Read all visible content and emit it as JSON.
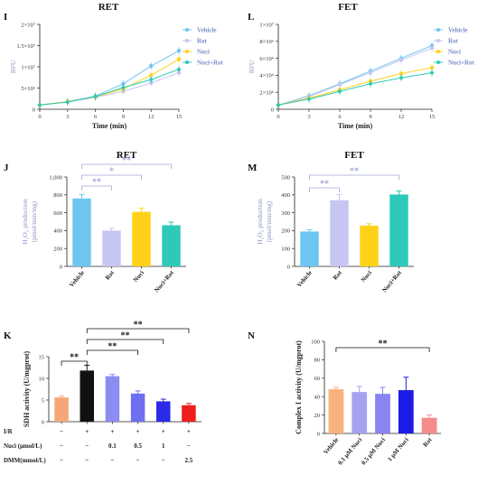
{
  "colors": {
    "vehicle": "#6ec6f0",
    "rot": "#c7c6f2",
    "nuci": "#ffd21a",
    "nuci_rot": "#2ec9b8",
    "sig_blue": "#a3a9d8",
    "sig_black": "#111111",
    "k_colors": [
      "#f7a777",
      "#111111",
      "#8d8cf2",
      "#6e6ef0",
      "#2a2ae8",
      "#ef1e1e"
    ],
    "n_colors": [
      "#f9b27d",
      "#a5a3f0",
      "#8884f0",
      "#1c1ce4",
      "#f58b8b"
    ]
  },
  "chart_data": [
    {
      "id": "I",
      "letter": "I",
      "type": "line",
      "title": "RET",
      "xlabel": "Time (min)",
      "ylabel": "RFU",
      "xticks": [
        "0",
        "3",
        "6",
        "9",
        "12",
        "15"
      ],
      "yticks": [
        "0",
        "5×10⁶",
        "1×10⁷",
        "1.5×10⁷",
        "2×10⁷"
      ],
      "xlim": [
        0,
        15
      ],
      "ylim": [
        0,
        20000000
      ],
      "x": [
        0,
        3,
        6,
        9,
        12,
        15
      ],
      "series": [
        {
          "name": "Vehicle",
          "values": [
            1000000,
            1800000,
            3100000,
            6000000,
            10200000,
            13800000
          ]
        },
        {
          "name": "Rot",
          "values": [
            1000000,
            1700000,
            2800000,
            4200000,
            6200000,
            8600000
          ]
        },
        {
          "name": "Nuci",
          "values": [
            1000000,
            1800000,
            2900000,
            4800000,
            8000000,
            11800000
          ]
        },
        {
          "name": "Nuci+Rot",
          "values": [
            1000000,
            1700000,
            3000000,
            5100000,
            7000000,
            9400000
          ]
        }
      ],
      "legend": "right"
    },
    {
      "id": "L",
      "letter": "L",
      "type": "line",
      "title": "FET",
      "xlabel": "Time (min)",
      "ylabel": "RFU",
      "xticks": [
        "0",
        "3",
        "6",
        "9",
        "12",
        "15"
      ],
      "yticks": [
        "0",
        "2×10⁶",
        "4×10⁶",
        "6×10⁶",
        "8×10⁶",
        "1×10⁷"
      ],
      "xlim": [
        0,
        15
      ],
      "ylim": [
        0,
        10000000
      ],
      "x": [
        0,
        3,
        6,
        9,
        12,
        15
      ],
      "series": [
        {
          "name": "Vehicle",
          "values": [
            500000,
            1600000,
            3000000,
            4500000,
            6000000,
            7500000
          ]
        },
        {
          "name": "Rot",
          "values": [
            500000,
            1500000,
            2900000,
            4300000,
            5800000,
            7200000
          ]
        },
        {
          "name": "Nuci",
          "values": [
            500000,
            1300000,
            2300000,
            3300000,
            4200000,
            4900000
          ]
        },
        {
          "name": "Nuci+Rot",
          "values": [
            500000,
            1200000,
            2100000,
            3000000,
            3700000,
            4300000
          ]
        }
      ],
      "legend": "right"
    },
    {
      "id": "J",
      "letter": "J",
      "type": "bar",
      "title": "RET",
      "ylabel_line1": "H₂O₂ production",
      "ylabel_line2": "(pmol/min/mg)",
      "yticks": [
        "0",
        "200",
        "400",
        "600",
        "800",
        "1,000"
      ],
      "ylim": [
        0,
        1000
      ],
      "categories": [
        "Vehicle",
        "Rot",
        "Nuci",
        "Nuci+Rot"
      ],
      "values": [
        760,
        400,
        610,
        460
      ],
      "errors": [
        45,
        25,
        40,
        35
      ],
      "significance": [
        {
          "from": 0,
          "to": 1,
          "label": "**",
          "level": 0
        },
        {
          "from": 0,
          "to": 2,
          "label": "*",
          "level": 1
        },
        {
          "from": 0,
          "to": 3,
          "label": "**",
          "level": 2
        }
      ]
    },
    {
      "id": "M",
      "letter": "M",
      "type": "bar",
      "title": "FET",
      "ylabel_line1": "H₂O₂ production",
      "ylabel_line2": "(pmol/min/mg)",
      "yticks": [
        "0",
        "100",
        "200",
        "300",
        "400",
        "500"
      ],
      "ylim": [
        0,
        500
      ],
      "categories": [
        "Vehicle",
        "Rot",
        "Nuci",
        "Nuci+Rot"
      ],
      "values": [
        195,
        370,
        228,
        402
      ],
      "errors": [
        10,
        32,
        10,
        20
      ],
      "significance": [
        {
          "from": 0,
          "to": 1,
          "label": "**",
          "level": 0
        },
        {
          "from": 0,
          "to": 3,
          "label": "**",
          "level": 1
        }
      ]
    },
    {
      "id": "K",
      "letter": "K",
      "type": "bar",
      "title": "",
      "ylabel": "SDH activity (U/mgprot)",
      "yticks": [
        "0",
        "5",
        "10",
        "15"
      ],
      "ylim": [
        0,
        15
      ],
      "categories": [
        "",
        "",
        "",
        "",
        "",
        ""
      ],
      "values": [
        5.6,
        11.8,
        10.5,
        6.5,
        4.7,
        3.8
      ],
      "errors": [
        0.3,
        1.2,
        0.4,
        0.6,
        0.5,
        0.4
      ],
      "row_labels": [
        "I/R",
        "Nuci (μmol/L)",
        "DMM(mmol/L)"
      ],
      "rows": [
        [
          "−",
          "+",
          "+",
          "+",
          "+",
          "+"
        ],
        [
          "−",
          "−",
          "0.1",
          "0.5",
          "1",
          "−"
        ],
        [
          "−",
          "−",
          "−",
          "−",
          "−",
          "2.5"
        ]
      ],
      "significance": [
        {
          "from": 0,
          "to": 1,
          "label": "**",
          "level": 0
        },
        {
          "from": 1,
          "to": 3,
          "label": "**",
          "level": 1
        },
        {
          "from": 1,
          "to": 4,
          "label": "**",
          "level": 2
        },
        {
          "from": 1,
          "to": 5,
          "label": "**",
          "level": 3
        }
      ]
    },
    {
      "id": "N",
      "letter": "N",
      "type": "bar",
      "title": "",
      "ylabel": "Complex I activity (U/mgprot)",
      "yticks": [
        "0",
        "20",
        "40",
        "60",
        "80",
        "100"
      ],
      "ylim": [
        0,
        100
      ],
      "categories": [
        "Vehicle",
        "0.1 μM Nuci",
        "0.5 μM Nuci",
        "1 μM Nuci",
        "Rot"
      ],
      "values": [
        48,
        45,
        43,
        47,
        17
      ],
      "errors": [
        2,
        6,
        7,
        14,
        3
      ],
      "significance": [
        {
          "from": 0,
          "to": 4,
          "label": "**",
          "level": 0
        }
      ]
    }
  ]
}
